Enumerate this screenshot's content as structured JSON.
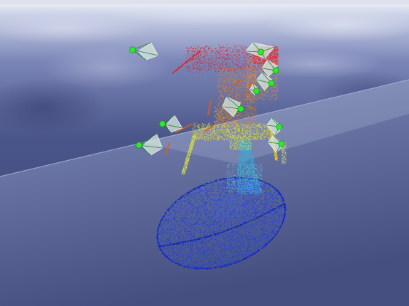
{
  "viewport": {
    "kind": "3d-point-cloud-viewer",
    "sky_colors": [
      "#e7ecf6",
      "#8f98c4",
      "#3b4573"
    ],
    "floor_colors": [
      "#7a86b3",
      "#5b6796",
      "#3a4474"
    ],
    "point_color_ramp": [
      "#1030e0",
      "#20b0e0",
      "#e0e020",
      "#f07010",
      "#e01010"
    ]
  },
  "scene": {
    "cloud_parts": [
      {
        "name": "base-dish",
        "color": "#1a3ee6"
      },
      {
        "name": "stem",
        "color": "#2fb0dc"
      },
      {
        "name": "upper-stem",
        "color": "#e8e020"
      },
      {
        "name": "frame",
        "color": "#f08020"
      },
      {
        "name": "top-cluster",
        "color": "#e81010"
      }
    ],
    "camera_markers": [
      {
        "id": "cam-1"
      },
      {
        "id": "cam-2"
      },
      {
        "id": "cam-3"
      },
      {
        "id": "cam-4"
      },
      {
        "id": "cam-5"
      },
      {
        "id": "cam-6"
      },
      {
        "id": "cam-7"
      },
      {
        "id": "cam-8"
      },
      {
        "id": "cam-9"
      },
      {
        "id": "cam-10"
      }
    ],
    "marker_color": "#2ee82e",
    "frustum_color": "#d8e8e0"
  }
}
